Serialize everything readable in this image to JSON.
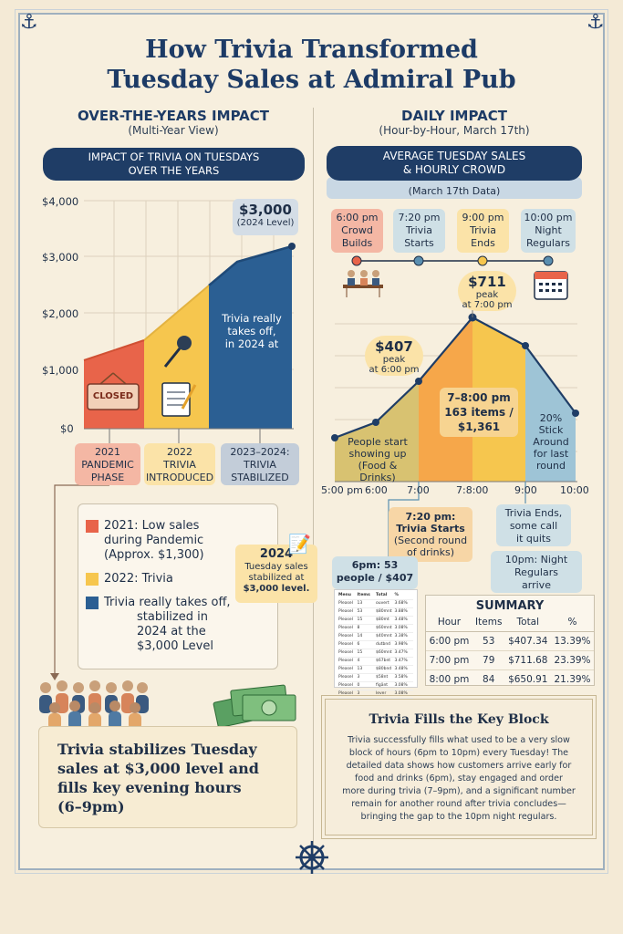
{
  "title": {
    "line1": "How Trivia Transformed",
    "line2": "Tuesday Sales at Admiral Pub"
  },
  "left": {
    "heading": "OVER-THE-YEARS IMPACT",
    "subheading": "(Multi-Year View)",
    "banner": {
      "line1": "IMPACT OF TRIVIA ON TUESDAYS",
      "line2": "OVER THE YEARS"
    },
    "closed_sign": "CLOSED",
    "top_value": "$3,000",
    "top_value_note": "(2024 Level)",
    "chart_note": {
      "line1": "Trivia really",
      "line2": "takes off,",
      "line3": "in 2024 at"
    },
    "phases": [
      {
        "line1": "2021",
        "line2": "PANDEMIC",
        "line3": "PHASE",
        "color": "#f4b7a4"
      },
      {
        "line1": "2022",
        "line2": "TRIVIA",
        "line3": "INTRODUCED",
        "color": "#fbe3a8"
      },
      {
        "line1": "2023–2024:",
        "line2": "TRIVIA",
        "line3": "STABILIZED",
        "color": "#c3cdd9"
      }
    ],
    "legend": [
      {
        "l1": "2021: Low sales",
        "l2": "during Pandemic",
        "l3": "(Approx. $1,300)",
        "color": "#e8644a"
      },
      {
        "l1": "2022: Trivia",
        "color": "#f6c64e"
      },
      {
        "l1": "Trivia really takes off,",
        "l2": "stabilized in",
        "l3": "2024 at the",
        "l4": "$3,000 Level",
        "color": "#2b5f93"
      }
    ],
    "callout_2024": {
      "line1": "2024",
      "line2": "Tuesday sales",
      "line3": "stabilized at",
      "line4": "$3,000 level."
    },
    "bottom": {
      "line1": "Trivia stabilizes Tuesday",
      "line2": "sales at $3,000 level and",
      "line3": "fills key evening hours",
      "line4": "(6–9pm)"
    }
  },
  "right": {
    "heading": "DAILY IMPACT",
    "subheading": "(Hour-by-Hour, March 17th)",
    "banner": {
      "line1": "AVERAGE TUESDAY SALES",
      "line2": "& HOURLY CROWD"
    },
    "subbanner": "(March 17th Data)",
    "timeline": [
      {
        "l1": "6:00 pm",
        "l2": "Crowd",
        "l3": "Builds",
        "color": "#f4b7a4",
        "dot": "#e8644a"
      },
      {
        "l1": "7:20 pm",
        "l2": "Trivia",
        "l3": "Starts",
        "color": "#cfe0e6",
        "dot": "#5a8fb0"
      },
      {
        "l1": "9:00 pm",
        "l2": "Trivia",
        "l3": "Ends",
        "color": "#fbe3a8",
        "dot": "#f6c64e"
      },
      {
        "l1": "10:00 pm",
        "l2": "Night",
        "l3": "Regulars",
        "color": "#cfe0e6",
        "dot": "#5a8fb0"
      }
    ],
    "peak_711": {
      "value": "$711",
      "l1": "peak",
      "l2": "at 7:00 pm"
    },
    "peak_407": {
      "value": "$407",
      "l1": "peak",
      "l2": "at 6:00 pm"
    },
    "area_labels": {
      "early": {
        "l1": "People start",
        "l2": "showing up",
        "l3": "(Food &",
        "l4": "Drinks)"
      },
      "mid": {
        "l1": "7–8:00 pm",
        "l2": "163 items /",
        "l3": "$1,361"
      },
      "late": {
        "l1": "20%",
        "l2": "Stick",
        "l3": "Around",
        "l4": "for last",
        "l5": "round"
      }
    },
    "x_ticks": [
      "5:00 pm",
      "6:00",
      "7:00",
      "7:8:00",
      "9:00",
      "10:00"
    ],
    "notes": {
      "trivia_starts": {
        "l1": "7:20 pm:",
        "l2": "Trivia Starts",
        "l3": "(Second round",
        "l4": "of drinks)"
      },
      "trivia_ends": {
        "l1": "Trivia Ends,",
        "l2": "some call",
        "l3": "it quits"
      },
      "night_regulars": {
        "l1": "10pm: Night",
        "l2": "Regulars",
        "l3": "arrive"
      },
      "six_pm": {
        "l1": "6pm: 53",
        "l2": "people / $407"
      }
    },
    "receipt": {
      "headers": [
        "Menu",
        "Items",
        "Total",
        "%"
      ],
      "rows": [
        [
          "Pleasel",
          "13",
          "ouvert",
          "3.68%"
        ],
        [
          "Pleasel",
          "53",
          "$80mnt",
          "3.88%"
        ],
        [
          "Pleasel",
          "15",
          "$80mt",
          "3.48%"
        ],
        [
          "Pleasel",
          "8",
          "$60mnt",
          "3.08%"
        ],
        [
          "Pleasel",
          "14",
          "$40mnt",
          "3.38%"
        ],
        [
          "Pleasel",
          "6",
          "dutbnd",
          "3.98%"
        ],
        [
          "Pleasel",
          "15",
          "$60mnt",
          "3.47%"
        ],
        [
          "Pleasel",
          "4",
          "$67bnt",
          "3.47%"
        ],
        [
          "Pleasel",
          "13",
          "$80bnd",
          "3.48%"
        ],
        [
          "Pleasel",
          "3",
          "$58nt",
          "3.58%"
        ],
        [
          "Pleasel",
          "0",
          "figänt",
          "3.08%"
        ],
        [
          "Pleasel",
          "3",
          "lever",
          "3.08%"
        ]
      ]
    },
    "summary": {
      "title": "SUMMARY",
      "headers": [
        "Hour",
        "Items",
        "Total",
        "%"
      ],
      "rows": [
        [
          "6:00 pm",
          "53",
          "$407.34",
          "13.39%"
        ],
        [
          "7:00 pm",
          "79",
          "$711.68",
          "23.39%"
        ],
        [
          "8:00 pm",
          "84",
          "$650.91",
          "21.39%"
        ]
      ]
    },
    "fills": {
      "title": "Trivia Fills the Key Block",
      "body": [
        "Trivia successfully fills what used to be a very slow",
        "block of hours (6pm to 10pm) every Tuesday! The",
        "detailed data shows how customers arrive early for",
        "food and drinks (6pm), stay engaged and order",
        "more during trivia (7–9pm), and a significant number",
        "remain for another round after trivia concludes—",
        "bringing the gap to the 10pm night regulars."
      ]
    }
  },
  "chart_data": [
    {
      "type": "area",
      "title": "IMPACT OF TRIVIA ON TUESDAYS OVER THE YEARS",
      "y_ticks": [
        "$4,000",
        "$3,000",
        "$2,000",
        "$1,000",
        "$0"
      ],
      "ylim": [
        0,
        4000
      ],
      "segments": [
        {
          "name": "2021 PANDEMIC PHASE",
          "color": "#e8644a",
          "points": [
            [
              0,
              1200
            ],
            [
              0.28,
              1530
            ]
          ]
        },
        {
          "name": "2022 TRIVIA INTRODUCED",
          "color": "#f6c64e",
          "points": [
            [
              0.28,
              1530
            ],
            [
              0.55,
              2480
            ]
          ]
        },
        {
          "name": "2023–2024: TRIVIA STABILIZED",
          "color": "#2b5f93",
          "points": [
            [
              0.55,
              2480
            ],
            [
              0.73,
              2880
            ],
            [
              1,
              3150
            ]
          ]
        }
      ]
    },
    {
      "type": "area",
      "title": "AVERAGE TUESDAY SALES & HOURLY CROWD",
      "x": [
        "5:00 pm",
        "6:00",
        "7:00",
        "7:8:00",
        "9:00",
        "10:00"
      ],
      "points": [
        [
          0,
          150
        ],
        [
          0.25,
          230
        ],
        [
          0.5,
          407
        ],
        [
          0.98,
          711
        ],
        [
          1.35,
          585
        ],
        [
          1.78,
          300
        ]
      ],
      "x_pos": [
        0,
        0.25,
        0.5,
        0.98,
        1.35,
        1.78
      ],
      "ylim": [
        0,
        850
      ],
      "colors": [
        "#d8c271",
        "#f6a74a",
        "#f6c64e",
        "#9ec4d6"
      ]
    }
  ]
}
